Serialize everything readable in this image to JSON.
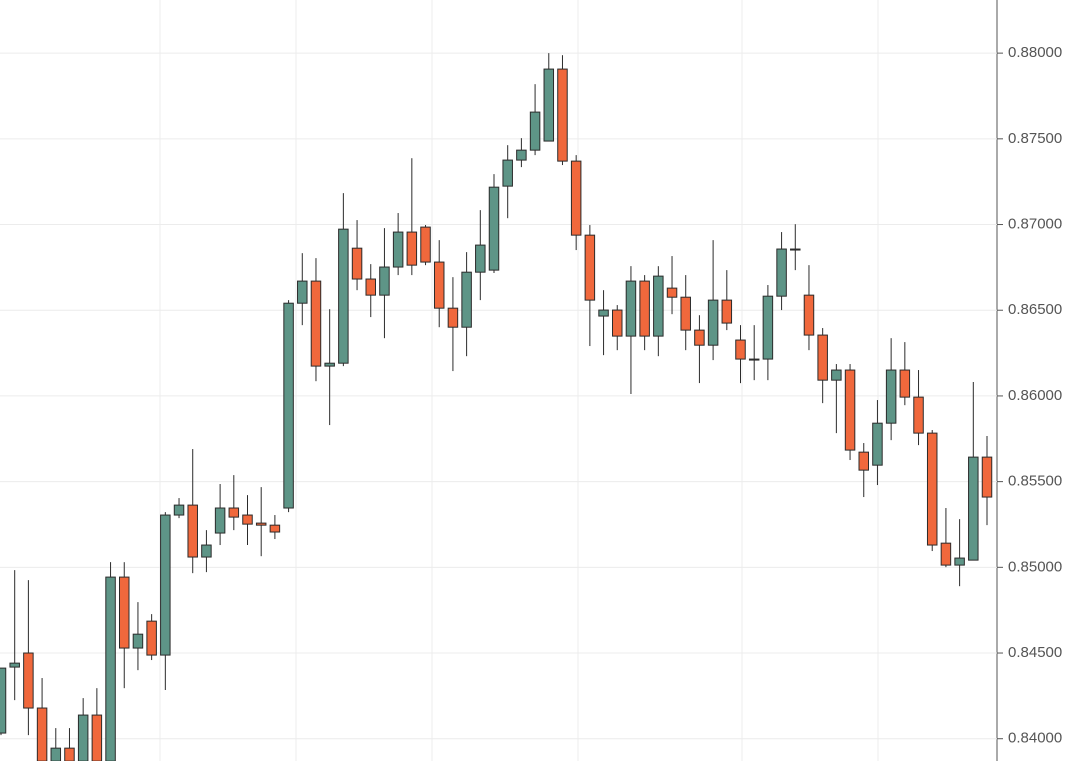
{
  "chart_data": {
    "type": "candlestick",
    "open": [
      0.84033,
      0.84418,
      0.845,
      0.84179,
      0.83869,
      0.83945,
      0.83869,
      0.84138,
      0.83869,
      0.84943,
      0.84529,
      0.84686,
      0.84488,
      0.85305,
      0.85363,
      0.8506,
      0.852,
      0.85346,
      0.85305,
      0.85258,
      0.85246,
      0.85346,
      0.86541,
      0.8667,
      0.86174,
      0.86191,
      0.86862,
      0.86682,
      0.86588,
      0.86752,
      0.86956,
      0.86985,
      0.86781,
      0.86512,
      0.86401,
      0.86722,
      0.86734,
      0.87224,
      0.87376,
      0.87434,
      0.87487,
      0.87907,
      0.8737,
      0.86938,
      0.86466,
      0.86501,
      0.86349,
      0.8667,
      0.86349,
      0.86629,
      0.86576,
      0.86384,
      0.86296,
      0.86559,
      0.86326,
      0.86215,
      0.86215,
      0.86582,
      0.86857,
      0.86588,
      0.86355,
      0.86092,
      0.86151,
      0.85672,
      0.85596,
      0.85841,
      0.86151,
      0.85993,
      0.85783,
      0.85141,
      0.85013,
      0.85042,
      0.85643
    ],
    "high": [
      0.84412,
      0.84984,
      0.84925,
      0.84354,
      0.84062,
      0.84062,
      0.84237,
      0.84295,
      0.8503,
      0.8503,
      0.84797,
      0.84727,
      0.85322,
      0.85404,
      0.8569,
      0.85217,
      0.85486,
      0.85538,
      0.85421,
      0.85468,
      0.85305,
      0.86559,
      0.86833,
      0.86804,
      0.86506,
      0.87183,
      0.87026,
      0.86769,
      0.86979,
      0.87067,
      0.87387,
      0.86997,
      0.86909,
      0.86693,
      0.86839,
      0.87084,
      0.87294,
      0.87463,
      0.87504,
      0.87819,
      0.88,
      0.87988,
      0.87405,
      0.86997,
      0.86617,
      0.8653,
      0.86757,
      0.86705,
      0.86757,
      0.86816,
      0.86705,
      0.86471,
      0.86909,
      0.86734,
      0.86413,
      0.86413,
      0.86647,
      0.86956,
      0.87002,
      0.86763,
      0.86396,
      0.86186,
      0.86186,
      0.85725,
      0.85976,
      0.86337,
      0.86314,
      0.86151,
      0.85801,
      0.85346,
      0.85281,
      0.86081,
      0.85766
    ],
    "low": [
      0.84021,
      0.84225,
      0.84021,
      0.83869,
      0.83869,
      0.83869,
      0.83869,
      0.83869,
      0.83869,
      0.84295,
      0.844,
      0.84459,
      0.84284,
      0.85287,
      0.84966,
      0.84972,
      0.8513,
      0.85217,
      0.8513,
      0.85065,
      0.85165,
      0.85322,
      0.86413,
      0.86086,
      0.8583,
      0.86174,
      0.86617,
      0.8646,
      0.86337,
      0.86705,
      0.86705,
      0.86763,
      0.86401,
      0.86145,
      0.86232,
      0.86559,
      0.86717,
      0.87037,
      0.87335,
      0.87405,
      0.87487,
      0.87347,
      0.86851,
      0.86291,
      0.86238,
      0.86267,
      0.86011,
      0.86267,
      0.86232,
      0.86477,
      0.86267,
      0.86075,
      0.86209,
      0.86384,
      0.86075,
      0.86092,
      0.86092,
      0.86501,
      0.86734,
      0.86267,
      0.85958,
      0.85783,
      0.85626,
      0.8541,
      0.8548,
      0.85742,
      0.85946,
      0.85713,
      0.85095,
      0.85001,
      0.8489,
      0.85042,
      0.85246
    ],
    "close": [
      0.84412,
      0.84441,
      0.84179,
      0.83869,
      0.83945,
      0.83869,
      0.84138,
      0.83869,
      0.84943,
      0.84529,
      0.8461,
      0.84488,
      0.85305,
      0.85363,
      0.8506,
      0.8513,
      0.85346,
      0.85293,
      0.85252,
      0.85246,
      0.85206,
      0.86541,
      0.8667,
      0.86174,
      0.86191,
      0.86973,
      0.86682,
      0.86588,
      0.86752,
      0.86956,
      0.86763,
      0.86781,
      0.86512,
      0.86401,
      0.86722,
      0.8688,
      0.87218,
      0.87376,
      0.87434,
      0.87656,
      0.87907,
      0.8737,
      0.86938,
      0.86559,
      0.86501,
      0.86349,
      0.8667,
      0.86349,
      0.86699,
      0.86576,
      0.86384,
      0.86296,
      0.86559,
      0.86425,
      0.86215,
      0.86215,
      0.86582,
      0.86857,
      0.86857,
      0.86355,
      0.86092,
      0.86151,
      0.85684,
      0.85567,
      0.85841,
      0.86151,
      0.85993,
      0.85783,
      0.8513,
      0.85013,
      0.85054,
      0.85643,
      0.8541
    ],
    "up_color": "#5e9587",
    "down_color": "#f0683c",
    "ylim": [
      0.8387,
      0.8831
    ],
    "yticks": [
      {
        "value": 0.84,
        "label": "0.84000"
      },
      {
        "value": 0.845,
        "label": "0.84500"
      },
      {
        "value": 0.85,
        "label": "0.85000"
      },
      {
        "value": 0.855,
        "label": "0.85500"
      },
      {
        "value": 0.86,
        "label": "0.86000"
      },
      {
        "value": 0.865,
        "label": "0.86500"
      },
      {
        "value": 0.87,
        "label": "0.87000"
      },
      {
        "value": 0.875,
        "label": "0.87500"
      },
      {
        "value": 0.88,
        "label": "0.88000"
      }
    ],
    "grid": true
  }
}
